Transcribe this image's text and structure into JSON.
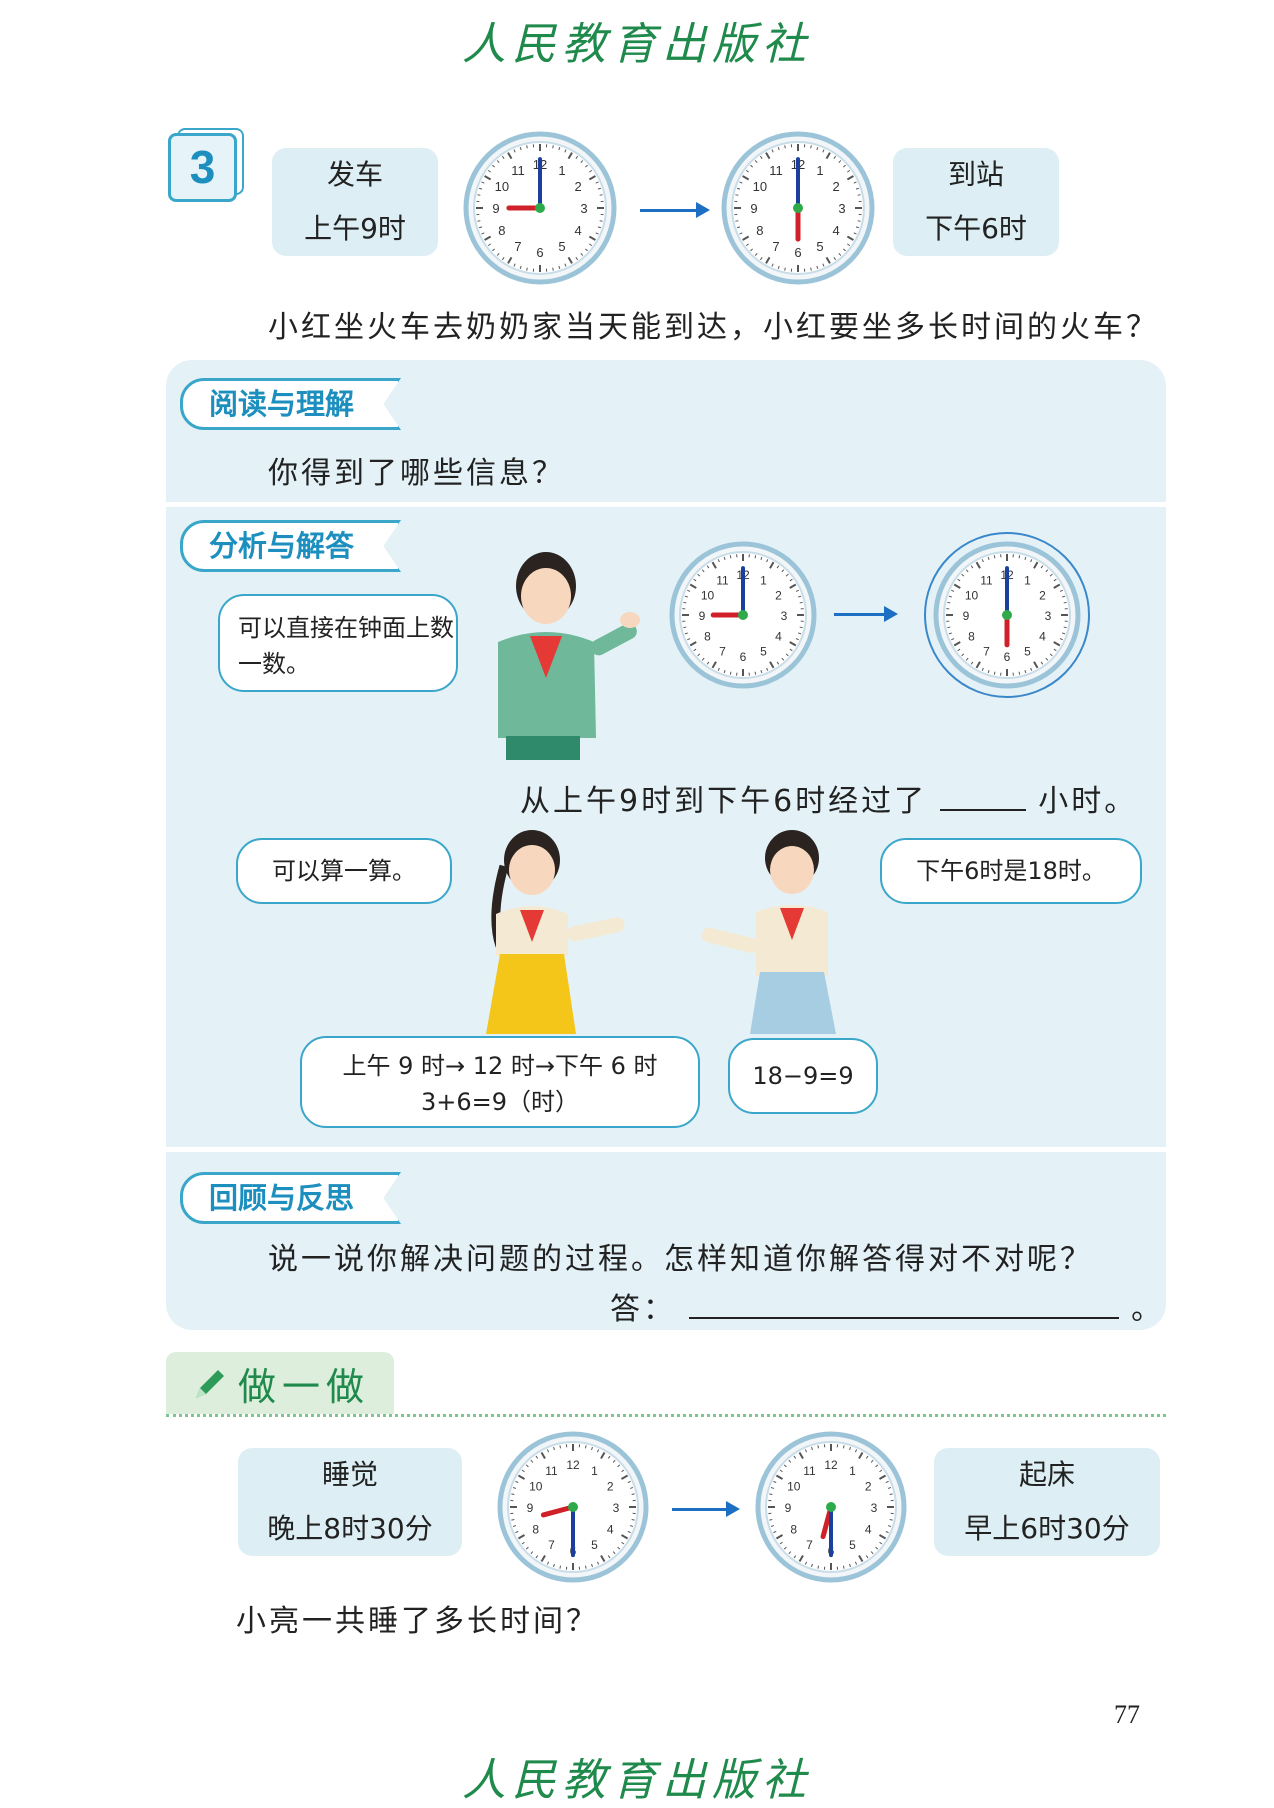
{
  "publisher": "人民教育出版社",
  "example_number": "3",
  "train": {
    "depart_label": "发车",
    "depart_time": "上午9时",
    "arrive_label": "到站",
    "arrive_time": "下午6时",
    "question": "小红坐火车去奶奶家当天能到达，小红要坐多长时间的火车？"
  },
  "read_section": {
    "tag": "阅读与理解",
    "prompt": "你得到了哪些信息？"
  },
  "analysis_section": {
    "tag": "分析与解答",
    "boy_bubble": "可以直接在钟面上数一数。",
    "fill_text_before": "从上午9时到下午6时经过了",
    "fill_text_after": "小时。",
    "girl1_bubble": "可以算一算。",
    "girl2_bubble": "下午6时是18时。",
    "method1_line1": "上午 9 时→ 12 时→下午 6 时",
    "method1_line2": "3+6=9（时）",
    "method2": "18−9=9"
  },
  "review_section": {
    "tag": "回顾与反思",
    "prompt": "说一说你解决问题的过程。怎样知道你解答得对不对呢？",
    "answer_label": "答：",
    "answer_end": "。"
  },
  "practice": {
    "title": "做一做",
    "sleep_label": "睡觉",
    "sleep_time": "晚上8时30分",
    "wake_label": "起床",
    "wake_time": "早上6时30分",
    "question": "小亮一共睡了多长时间？"
  },
  "clock_numerals": [
    "12",
    "1",
    "2",
    "3",
    "4",
    "5",
    "6",
    "7",
    "8",
    "9",
    "10",
    "11"
  ],
  "page_number": "77",
  "colors": {
    "accent": "#3aa6c9",
    "panel": "#e4f2f8",
    "green": "#1f8a4c",
    "arrow": "#1c6fc2"
  }
}
